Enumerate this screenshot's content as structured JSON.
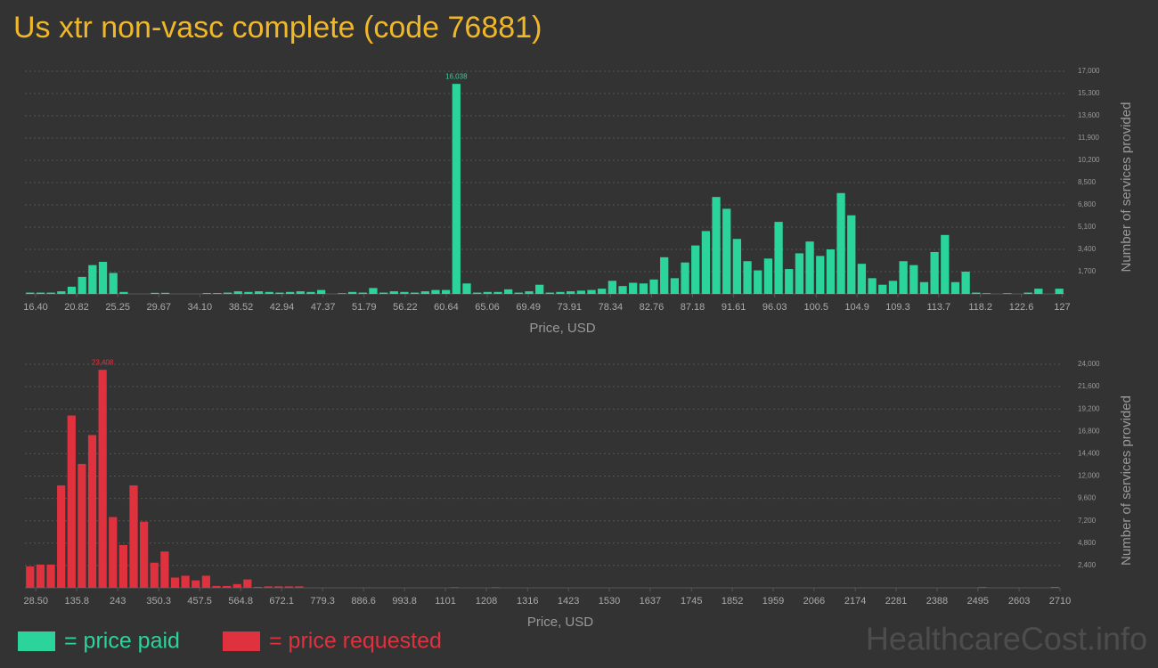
{
  "title": "Us xtr non-vasc complete (code 76881)",
  "watermark": "HealthcareCost.info",
  "chart_data": [
    {
      "type": "histogram",
      "xlabel": "Price, USD",
      "ylabel": "Number of services provided",
      "grid": true,
      "bins": [
        15.25,
        16.37,
        17.49,
        18.61,
        19.73,
        20.85,
        21.97,
        23.09,
        24.21,
        25.33,
        26.45,
        27.57,
        28.69,
        29.81,
        30.93,
        32.05,
        33.17,
        34.29,
        35.41,
        36.53,
        37.65,
        38.77,
        39.89,
        41.01,
        42.13,
        43.25,
        44.37,
        45.49,
        46.61,
        47.73,
        48.85,
        49.97,
        51.09,
        52.21,
        53.33,
        54.45,
        55.57,
        56.69,
        57.81,
        58.93,
        60.05,
        61.17,
        62.29,
        63.41,
        64.53,
        65.65,
        66.77,
        67.89,
        69.01,
        70.13,
        71.25,
        72.37,
        73.49,
        74.61,
        75.73,
        76.85,
        77.97,
        79.09,
        80.21,
        81.33,
        82.45,
        83.57,
        84.69,
        85.81,
        86.93,
        88.05,
        89.17,
        90.29,
        91.41,
        92.53,
        93.65,
        94.77,
        95.89,
        97.01,
        98.13,
        99.25,
        100.37,
        101.49,
        102.61,
        103.73,
        104.85,
        105.97,
        107.09,
        108.21,
        109.33,
        110.45,
        111.57,
        112.69,
        113.81,
        114.93,
        116.05,
        117.17,
        118.29,
        119.41,
        120.53,
        121.65,
        122.77,
        123.89,
        125.01,
        126.13,
        127.25
      ],
      "series": [
        {
          "name": "= price paid",
          "color": "#2bd49b",
          "values": [
            100,
            100,
            100,
            200,
            550,
            1300,
            2200,
            2450,
            1600,
            150,
            0,
            0,
            80,
            80,
            0,
            0,
            0,
            60,
            60,
            100,
            200,
            150,
            200,
            150,
            100,
            150,
            200,
            150,
            300,
            0,
            50,
            150,
            100,
            450,
            100,
            200,
            150,
            100,
            200,
            300,
            300,
            16038,
            800,
            100,
            150,
            150,
            350,
            100,
            200,
            700,
            100,
            150,
            200,
            250,
            300,
            400,
            1000,
            600,
            850,
            800,
            1100,
            2800,
            1200,
            2400,
            3700,
            4800,
            7400,
            6500,
            4200,
            2500,
            1800,
            2700,
            5500,
            1900,
            3100,
            4000,
            2900,
            3400,
            7700,
            6000,
            2300,
            1200,
            700,
            1000,
            2500,
            2200,
            900,
            3200,
            4500,
            900,
            1700,
            100,
            50,
            0,
            50,
            0,
            100,
            400,
            0,
            400
          ],
          "value_labels": [
            null,
            null,
            null,
            null,
            null,
            null,
            null,
            null,
            null,
            null,
            null,
            null,
            null,
            null,
            null,
            null,
            null,
            null,
            null,
            null,
            null,
            null,
            null,
            null,
            null,
            null,
            null,
            null,
            null,
            null,
            null,
            null,
            null,
            null,
            null,
            null,
            null,
            null,
            null,
            null,
            null,
            "16,038",
            null,
            null,
            null,
            null,
            null,
            null,
            null,
            null,
            null,
            null,
            null,
            null,
            null,
            null,
            null,
            null,
            null,
            null,
            null,
            null,
            null,
            null,
            null,
            null,
            null,
            null,
            null,
            null,
            null,
            null,
            null,
            null,
            null,
            null,
            null,
            null,
            null,
            null,
            null,
            null,
            null,
            null,
            null,
            null,
            null,
            null,
            null,
            null,
            null,
            null,
            null,
            null,
            null,
            null,
            null,
            null,
            null,
            null
          ]
        }
      ],
      "xlim": [
        15.25,
        127.25
      ],
      "xticks": [
        {
          "value": 16.4,
          "label": "16.40"
        },
        20.82,
        25.25,
        29.67,
        {
          "value": 34.1,
          "label": "34.10"
        },
        38.52,
        42.94,
        47.37,
        51.79,
        56.22,
        60.64,
        65.06,
        69.49,
        73.91,
        78.34,
        82.76,
        87.18,
        91.61,
        96.03,
        100.5,
        104.9,
        109.3,
        113.7,
        118.2,
        122.6,
        127
      ],
      "ylim": [
        0,
        17000
      ],
      "yticks": [
        {
          "value": 1700,
          "label": "1,700"
        },
        {
          "value": 3400,
          "label": "3,400"
        },
        {
          "value": 5100,
          "label": "5,100"
        },
        {
          "value": 6800,
          "label": "6,800"
        },
        {
          "value": 8500,
          "label": "8,500"
        },
        {
          "value": 10200,
          "label": "10,200"
        },
        {
          "value": 11900,
          "label": "11,900"
        },
        {
          "value": 13600,
          "label": "13,600"
        },
        {
          "value": 15300,
          "label": "15,300"
        },
        {
          "value": 17000,
          "label": "17,000"
        }
      ]
    },
    {
      "type": "histogram",
      "xlabel": "Price, USD",
      "ylabel": "Number of services provided",
      "grid": true,
      "bins": [
        0,
        27.1,
        54.2,
        81.3,
        108.4,
        135.5,
        162.6,
        189.7,
        216.8,
        243.9,
        271,
        298.1,
        325.2,
        352.3,
        379.4,
        406.5,
        433.6,
        460.7,
        487.8,
        514.9,
        542,
        569.1,
        596.2,
        623.3,
        650.4,
        677.5,
        704.6,
        731.7,
        758.8,
        785.9,
        813,
        840.1,
        867.2,
        894.3,
        921.4,
        948.5,
        975.6,
        1002.7,
        1029.8,
        1056.9,
        1084,
        1111.1,
        1138.2,
        1165.3,
        1192.4,
        1219.5,
        1246.6,
        1273.7,
        1300.8,
        1327.9,
        1355,
        1382.1,
        1409.2,
        1436.3,
        1463.4,
        1490.5,
        1517.6,
        1544.7,
        1571.8,
        1598.9,
        1626,
        1653.1,
        1680.2,
        1707.3,
        1734.4,
        1761.5,
        1788.6,
        1815.7,
        1842.8,
        1869.9,
        1897,
        1924.1,
        1951.2,
        1978.3,
        2005.4,
        2032.5,
        2059.6,
        2086.7,
        2113.8,
        2140.9,
        2168,
        2195.1,
        2222.2,
        2249.3,
        2276.4,
        2303.5,
        2330.6,
        2357.7,
        2384.8,
        2411.9,
        2439,
        2466.1,
        2493.2,
        2520.3,
        2547.4,
        2574.5,
        2601.6,
        2628.7,
        2655.8,
        2682.9,
        2710
      ],
      "series": [
        {
          "name": "= price requested",
          "color": "#e0323e",
          "values": [
            2300,
            2500,
            2500,
            11000,
            18500,
            13300,
            16400,
            23408,
            7600,
            4600,
            11000,
            7100,
            2700,
            3900,
            1100,
            1300,
            800,
            1300,
            200,
            200,
            400,
            900,
            100,
            150,
            150,
            150,
            150,
            0,
            0,
            0,
            0,
            0,
            0,
            0,
            0,
            0,
            0,
            0,
            0,
            0,
            0,
            60,
            0,
            0,
            0,
            60,
            0,
            0,
            0,
            0,
            0,
            0,
            0,
            0,
            0,
            0,
            0,
            0,
            0,
            0,
            0,
            0,
            0,
            0,
            0,
            0,
            0,
            0,
            0,
            0,
            0,
            0,
            0,
            0,
            0,
            0,
            0,
            0,
            0,
            0,
            0,
            0,
            0,
            0,
            0,
            0,
            0,
            0,
            0,
            0,
            0,
            0,
            80,
            0,
            0,
            0,
            0,
            0,
            0,
            100
          ],
          "value_labels": [
            null,
            null,
            null,
            null,
            null,
            null,
            null,
            "23,408",
            null,
            null,
            null,
            null,
            null,
            null,
            null,
            null,
            null,
            null,
            null,
            null,
            null,
            null,
            null,
            null,
            null,
            null,
            null,
            null,
            null,
            null,
            null,
            null,
            null,
            null,
            null,
            null,
            null,
            null,
            null,
            null,
            null,
            null,
            null,
            null,
            null,
            null,
            null,
            null,
            null,
            null,
            null,
            null,
            null,
            null,
            null,
            null,
            null,
            null,
            null,
            null,
            null,
            null,
            null,
            null,
            null,
            null,
            null,
            null,
            null,
            null,
            null,
            null,
            null,
            null,
            null,
            null,
            null,
            null,
            null,
            null,
            null,
            null,
            null,
            null,
            null,
            null,
            null,
            null,
            null,
            null,
            null,
            null,
            null,
            null,
            null,
            null,
            null,
            null,
            null,
            null
          ]
        }
      ],
      "xlim": [
        0,
        2710
      ],
      "xticks": [
        {
          "value": 28.5,
          "label": "28.50"
        },
        135.8,
        243,
        350.3,
        457.5,
        564.8,
        672.1,
        779.3,
        886.6,
        993.8,
        1101,
        1208,
        1316,
        1423,
        1530,
        1637,
        1745,
        1852,
        1959,
        2066,
        2174,
        2281,
        2388,
        2495,
        2603,
        2710
      ],
      "ylim": [
        0,
        24000
      ],
      "yticks": [
        {
          "value": 2400,
          "label": "2,400"
        },
        {
          "value": 4800,
          "label": "4,800"
        },
        {
          "value": 7200,
          "label": "7,200"
        },
        {
          "value": 9600,
          "label": "9,600"
        },
        {
          "value": 12000,
          "label": "12,000"
        },
        {
          "value": 14400,
          "label": "14,400"
        },
        {
          "value": 16800,
          "label": "16,800"
        },
        {
          "value": 19200,
          "label": "19,200"
        },
        {
          "value": 21600,
          "label": "21,600"
        },
        {
          "value": 24000,
          "label": "24,000"
        }
      ]
    }
  ]
}
